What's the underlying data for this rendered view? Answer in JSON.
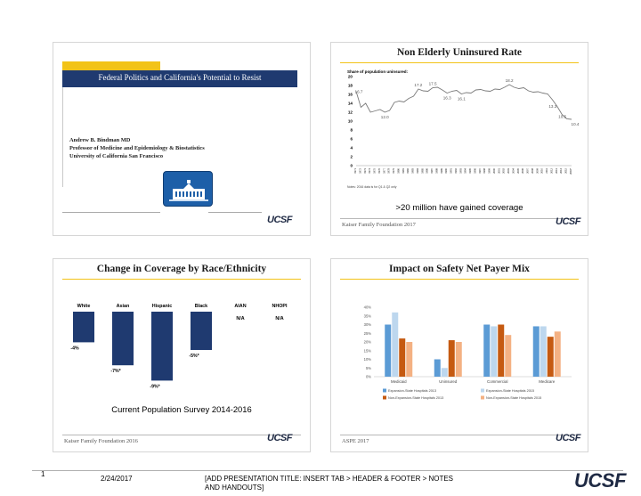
{
  "slide1": {
    "title": "Federal Politics and California's Potential to Resist",
    "author_name": "Andrew B. Bindman MD",
    "author_title": "Professor of Medicine and Epidemiology & Biostatistics",
    "author_org": "University of California San Francisco",
    "logo": "UCSF"
  },
  "slide2": {
    "title": "Non Elderly Uninsured Rate",
    "chart_heading": "Share of population uninsured:",
    "note": "Notes: 2016 data is for Q1 & Q2 only",
    "caption": ">20 million have gained coverage",
    "footer": "Kaiser Family Foundation 2017",
    "logo": "UCSF"
  },
  "slide3": {
    "title": "Change in Coverage by Race/Ethnicity",
    "caption": "Current Population Survey 2014-2016",
    "footer": "Kaiser Family Foundation 2016",
    "logo": "UCSF",
    "na_label": "N/A"
  },
  "slide4": {
    "title": "Impact on Safety Net Payer Mix",
    "footer": "ASPE 2017",
    "logo": "UCSF"
  },
  "page": {
    "number": "1",
    "date": "2/24/2017",
    "notes_line1": "[ADD PRESENTATION TITLE: INSERT TAB > HEADER & FOOTER > NOTES",
    "notes_line2": "AND HANDOUTS]",
    "logo": "UCSF"
  },
  "colors": {
    "navy": "#1f3a70",
    "gold": "#f2c318",
    "bar_race": "#1f3a70",
    "s4_expansion_2013": "#5b9bd5",
    "s4_expansion_2015": "#bdd7ee",
    "s4_nonexp_2013": "#c55a11",
    "s4_nonexp_2015": "#f4b183"
  },
  "chart_data": [
    {
      "type": "line",
      "title": "Share of population uninsured:",
      "x": [
        1971,
        1972,
        1973,
        1974,
        1975,
        1976,
        1977,
        1978,
        1979,
        1980,
        1981,
        1982,
        1983,
        1984,
        1985,
        1986,
        1987,
        1988,
        1989,
        1990,
        1991,
        1992,
        1993,
        1994,
        1995,
        1996,
        1997,
        1998,
        1999,
        2000,
        2001,
        2002,
        2003,
        2004,
        2005,
        2006,
        2007,
        2008,
        2009,
        2010,
        2011,
        2012,
        2013,
        2014,
        2015,
        2016
      ],
      "x_tick_labels": [
        "1971",
        "1972",
        "1973",
        "1974",
        "1975",
        "1976",
        "1977",
        "1978",
        "1979",
        "1980",
        "1981",
        "1982",
        "1983",
        "1984",
        "1985",
        "1986",
        "1987",
        "1988",
        "1989",
        "1990",
        "1991",
        "1992",
        "1993",
        "1994",
        "1995",
        "1996",
        "1997",
        "1998",
        "1999",
        "2000",
        "2001",
        "2002",
        "2003",
        "2004",
        "2005",
        "2006",
        "2007",
        "2008",
        "2009",
        "2010",
        "2011",
        "2012",
        "2013",
        "2014",
        "2015",
        "2016*"
      ],
      "values": [
        16.7,
        13.1,
        14.0,
        12.0,
        12.3,
        12.6,
        12.0,
        12.4,
        14.2,
        14.5,
        14.3,
        15.1,
        15.6,
        17.2,
        16.8,
        16.7,
        17.5,
        17.6,
        17.0,
        16.3,
        16.7,
        16.9,
        16.1,
        16.4,
        16.3,
        17.0,
        17.1,
        16.8,
        16.7,
        17.2,
        17.1,
        17.6,
        18.2,
        17.6,
        17.3,
        17.5,
        16.8,
        16.5,
        16.6,
        16.3,
        16.1,
        14.8,
        13.3,
        11.5,
        10.5,
        10.4
      ],
      "data_labels": [
        {
          "x": 1971,
          "label": "16.7"
        },
        {
          "x": 1984,
          "label": "17.2"
        },
        {
          "x": 1987,
          "label": "17.5"
        },
        {
          "x": 1990,
          "label": "16.3"
        },
        {
          "x": 1993,
          "label": "16.1"
        },
        {
          "x": 1977,
          "label": "12.0"
        },
        {
          "x": 2003,
          "label": "18.2"
        },
        {
          "x": 2013,
          "label": "13.3"
        },
        {
          "x": 2015,
          "label": "10.5"
        },
        {
          "x": 2016,
          "label": "10.4"
        }
      ],
      "y_ticks": [
        0,
        2,
        4,
        6,
        8,
        10,
        12,
        14,
        16,
        18,
        20
      ],
      "ylim": [
        0,
        20
      ],
      "grid": false,
      "legend": "none"
    },
    {
      "type": "bar",
      "categories": [
        "White",
        "Asian",
        "Hispanic",
        "Black",
        "AIAN",
        "NHOPI"
      ],
      "values": [
        -4,
        -7,
        -9,
        -5,
        null,
        null
      ],
      "data_labels": [
        "-4%",
        "-7%*",
        "-9%*",
        "-5%*",
        "N/A",
        "N/A"
      ],
      "ylim": [
        -10,
        0
      ],
      "grid": false,
      "legend": "none"
    },
    {
      "type": "bar",
      "categories": [
        "Medicaid",
        "Uninsured",
        "Commercial",
        "Medicare"
      ],
      "series": [
        {
          "name": "Expansion-State Hospitals 2013",
          "values": [
            30,
            10,
            30,
            29
          ]
        },
        {
          "name": "Expansion-State Hospitals 2015",
          "values": [
            37,
            5,
            29,
            29
          ]
        },
        {
          "name": "Non-Expansion-State Hospitals 2013",
          "values": [
            22,
            21,
            30,
            23
          ]
        },
        {
          "name": "Non-Expansion-State Hospitals 2015",
          "values": [
            20,
            20,
            24,
            26
          ]
        }
      ],
      "y_ticks": [
        "0%",
        "5%",
        "10%",
        "15%",
        "20%",
        "25%",
        "30%",
        "35%",
        "40%"
      ],
      "ylim": [
        0,
        40
      ],
      "grid": false,
      "legend": "bottom"
    }
  ]
}
